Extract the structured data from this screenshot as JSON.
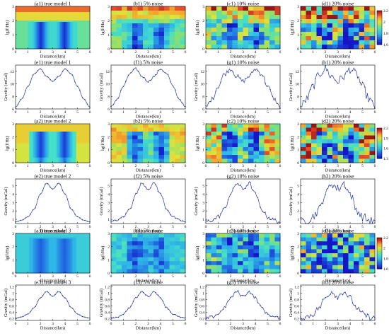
{
  "figure": {
    "rows": [
      {
        "type": "heatmap",
        "model": 1,
        "panels": [
          {
            "title": "(a1) true model 1",
            "noise_pct": 0
          },
          {
            "title": "(b1) 5% noise",
            "noise_pct": 5
          },
          {
            "title": "(c1) 10% noise",
            "noise_pct": 10
          },
          {
            "title": "(d1) 20% noise",
            "noise_pct": 20
          }
        ],
        "xlabel": "Distance(km)",
        "ylabel": "lg(f/Hz)",
        "xticks": [
          "0",
          "1",
          "2",
          "3",
          "4",
          "5",
          "6"
        ],
        "yticks": [
          "0",
          "1",
          "2",
          "3"
        ],
        "colorbar": {
          "label": "Log₁₀Res(Ωm)",
          "ticks": [
            "1.6",
            "1.8",
            "2",
            "2.2"
          ],
          "range": [
            1.6,
            2.2
          ]
        }
      },
      {
        "type": "line",
        "model": 1,
        "panels": [
          {
            "title": "(e1) true model 1",
            "noise_pct": 0
          },
          {
            "title": "(f1) 5% noise",
            "noise_pct": 5
          },
          {
            "title": "(g1) 10% noise",
            "noise_pct": 10
          },
          {
            "title": "(h1) 20% noise",
            "noise_pct": 20
          }
        ],
        "xlabel": "Distance(km)",
        "ylabel": "Gravity (mGal)",
        "xticks": [
          "0",
          "1",
          "2",
          "3",
          "4",
          "5",
          "6"
        ],
        "yticks": [
          "6",
          "8",
          "10",
          "12"
        ],
        "ylim": [
          6,
          13
        ]
      },
      {
        "type": "heatmap",
        "model": 2,
        "panels": [
          {
            "title": "(a2) true model 2",
            "noise_pct": 0
          },
          {
            "title": "(b2) 5% noise",
            "noise_pct": 5
          },
          {
            "title": "(c2) 10% noise",
            "noise_pct": 10
          },
          {
            "title": "(d2) 20% noise",
            "noise_pct": 20
          }
        ],
        "xlabel": "Distance(km)",
        "ylabel": "lg(f/Hz)",
        "xticks": [
          "0",
          "1",
          "2",
          "3",
          "4",
          "5",
          "6"
        ],
        "yticks": [
          "0",
          "1",
          "2",
          "3"
        ],
        "colorbar": {
          "label": "Log₁₀Res(Ωm)",
          "ticks": [
            "1.3",
            "1.6",
            "1.9",
            "2.2"
          ],
          "range": [
            1.3,
            2.2
          ]
        }
      },
      {
        "type": "line",
        "model": 2,
        "panels": [
          {
            "title": "(e2) true model 2",
            "noise_pct": 0
          },
          {
            "title": "(f2) 5% noise",
            "noise_pct": 5
          },
          {
            "title": "(g2) 10% noise",
            "noise_pct": 10
          },
          {
            "title": "(h2) 20% noise",
            "noise_pct": 20
          }
        ],
        "xlabel": "Distance(km)",
        "ylabel": "Gravity (mGal)",
        "xticks": [
          "0",
          "1",
          "2",
          "3",
          "4",
          "5",
          "6"
        ],
        "yticks": [
          "1",
          "2",
          "3",
          "4",
          "5"
        ],
        "ylim": [
          0.5,
          5.8
        ]
      },
      {
        "type": "heatmap",
        "model": 3,
        "panels": [
          {
            "title": "(a3) true model 3",
            "noise_pct": 0
          },
          {
            "title": "(b3) 5% noise",
            "noise_pct": 5
          },
          {
            "title": "(c3) 10% noise",
            "noise_pct": 10
          },
          {
            "title": "(d3) 20% noise",
            "noise_pct": 20
          }
        ],
        "xlabel": "Distance(km)",
        "ylabel": "lg(f/Hz)",
        "xticks": [
          "0",
          "1",
          "2",
          "3",
          "4",
          "5",
          "6"
        ],
        "yticks": [
          "0",
          "1",
          "2",
          "3"
        ],
        "colorbar": {
          "label": "Log₁₀Res(Ωm)",
          "ticks": [
            "1.6",
            "1.8",
            "2",
            "2.2"
          ],
          "range": [
            1.6,
            2.2
          ]
        }
      },
      {
        "type": "line",
        "model": 3,
        "panels": [
          {
            "title": "(e3) true model 3",
            "noise_pct": 0
          },
          {
            "title": "(f3) 5% noise",
            "noise_pct": 5
          },
          {
            "title": "(g3) 10% noise",
            "noise_pct": 10
          },
          {
            "title": "(h3) 20% noise",
            "noise_pct": 20
          }
        ],
        "xlabel": "Distance(km)",
        "ylabel": "Gravity (mGal)",
        "xticks": [
          "0",
          "1",
          "2",
          "3",
          "4",
          "5",
          "6"
        ],
        "yticks": [
          "0.2",
          "0.4",
          "0.6",
          "0.8",
          "1",
          "1.2"
        ],
        "ylim": [
          0.15,
          1.25
        ]
      }
    ]
  },
  "chart_data": [
    {
      "type": "line",
      "description_row": "gravity profiles model 1",
      "x": [
        0,
        0.5,
        1,
        1.5,
        2,
        2.5,
        3,
        3.5,
        4,
        4.5,
        5,
        5.5,
        6
      ],
      "series_true": [
        6.3,
        7.6,
        9.6,
        11.6,
        12.4,
        11.2,
        10.4,
        11.2,
        12.4,
        11.6,
        9.6,
        7.6,
        6.3
      ],
      "xlabel": "Distance(km)",
      "ylabel": "Gravity (mGal)",
      "ylim": [
        6,
        13
      ]
    },
    {
      "type": "line",
      "description_row": "gravity profiles model 2",
      "x": [
        0,
        0.5,
        1,
        1.5,
        2,
        2.5,
        3,
        3.5,
        4,
        4.5,
        5,
        5.5,
        6
      ],
      "series_true": [
        0.7,
        0.9,
        1.3,
        2.2,
        4.0,
        5.3,
        4.6,
        5.3,
        4.0,
        2.2,
        1.3,
        0.9,
        0.7
      ],
      "xlabel": "Distance(km)",
      "ylabel": "Gravity (mGal)",
      "ylim": [
        0.5,
        5.8
      ]
    },
    {
      "type": "line",
      "description_row": "gravity profiles model 3",
      "x": [
        0,
        0.5,
        1,
        1.5,
        2,
        2.5,
        3,
        3.5,
        4,
        4.5,
        5,
        5.5,
        6
      ],
      "series_true": [
        0.22,
        0.26,
        0.35,
        0.55,
        0.85,
        1.05,
        0.9,
        1.05,
        0.85,
        0.55,
        0.35,
        0.26,
        0.22
      ],
      "xlabel": "Distance(km)",
      "ylabel": "Gravity (mGal)",
      "ylim": [
        0.15,
        1.25
      ]
    }
  ]
}
